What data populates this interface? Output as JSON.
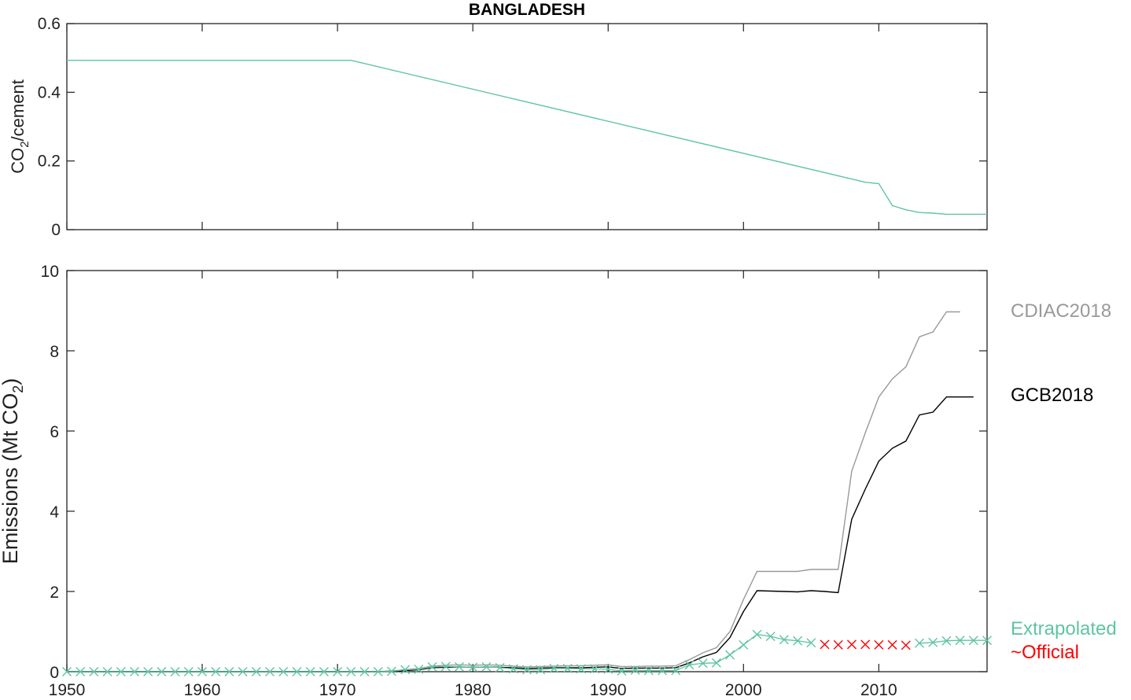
{
  "chart_data": [
    {
      "type": "line",
      "title": "BANGLADESH",
      "ylabel": "CO",
      "ylabel_sub": "2",
      "ylabel_suffix": "/cement",
      "xlim": [
        1950,
        2018
      ],
      "ylim": [
        0,
        0.6
      ],
      "yticks": [
        "0",
        "0.2",
        "0.4",
        "0.6"
      ],
      "grid": false,
      "color": "#5fc4a4",
      "x": [
        1950,
        1971,
        2009,
        2010,
        2011,
        2012,
        2013,
        2014,
        2015,
        2016,
        2017,
        2018
      ],
      "values": [
        0.493,
        0.493,
        0.138,
        0.134,
        0.07,
        0.058,
        0.05,
        0.048,
        0.045,
        0.045,
        0.045,
        0.045
      ]
    },
    {
      "type": "line",
      "ylabel": "Emissions (Mt CO",
      "ylabel_sub": "2",
      "ylabel_suffix": ")",
      "xlim": [
        1950,
        2018
      ],
      "ylim": [
        0,
        10
      ],
      "xticks": [
        "1950",
        "1960",
        "1970",
        "1980",
        "1990",
        "2000",
        "2010"
      ],
      "yticks": [
        "0",
        "2",
        "4",
        "6",
        "8",
        "10"
      ],
      "grid": false,
      "series": [
        {
          "name": "CDIAC2018",
          "color": "#999999",
          "x": [
            1950,
            1972,
            1973,
            1974,
            1975,
            1976,
            1977,
            1978,
            1979,
            1980,
            1981,
            1982,
            1983,
            1984,
            1985,
            1986,
            1987,
            1988,
            1989,
            1990,
            1991,
            1992,
            1993,
            1994,
            1995,
            1996,
            1997,
            1998,
            1999,
            2000,
            2001,
            2002,
            2003,
            2004,
            2005,
            2006,
            2007,
            2008,
            2009,
            2010,
            2011,
            2012,
            2013,
            2014,
            2015,
            2016
          ],
          "values": [
            0,
            0,
            0,
            0.02,
            0.05,
            0.08,
            0.14,
            0.16,
            0.17,
            0.16,
            0.17,
            0.16,
            0.14,
            0.12,
            0.13,
            0.14,
            0.15,
            0.15,
            0.16,
            0.17,
            0.13,
            0.13,
            0.14,
            0.14,
            0.15,
            0.3,
            0.47,
            0.6,
            1.0,
            1.8,
            2.5,
            2.5,
            2.5,
            2.5,
            2.55,
            2.55,
            2.55,
            5.0,
            5.95,
            6.85,
            7.3,
            7.6,
            8.35,
            8.47,
            8.97,
            8.97
          ]
        },
        {
          "name": "GCB2018",
          "color": "#000000",
          "x": [
            1950,
            1972,
            1973,
            1974,
            1975,
            1976,
            1977,
            1978,
            1979,
            1980,
            1981,
            1982,
            1983,
            1984,
            1985,
            1986,
            1987,
            1988,
            1989,
            1990,
            1991,
            1992,
            1993,
            1994,
            1995,
            1996,
            1997,
            1998,
            1999,
            2000,
            2001,
            2002,
            2003,
            2004,
            2005,
            2006,
            2007,
            2008,
            2009,
            2010,
            2011,
            2012,
            2013,
            2014,
            2015,
            2016,
            2017
          ],
          "values": [
            0,
            0,
            0,
            0.01,
            0.03,
            0.05,
            0.1,
            0.11,
            0.12,
            0.11,
            0.12,
            0.11,
            0.1,
            0.08,
            0.09,
            0.1,
            0.1,
            0.1,
            0.11,
            0.12,
            0.08,
            0.09,
            0.09,
            0.09,
            0.1,
            0.22,
            0.37,
            0.48,
            0.85,
            1.5,
            2.02,
            2.01,
            2.0,
            1.99,
            2.02,
            2.0,
            1.97,
            3.8,
            4.55,
            5.25,
            5.57,
            5.75,
            6.4,
            6.47,
            6.85,
            6.85,
            6.85
          ]
        },
        {
          "name": "Extrapolated",
          "color": "#5fc4a4",
          "marker": "x",
          "x": [
            1950,
            1951,
            1952,
            1953,
            1954,
            1955,
            1956,
            1957,
            1958,
            1959,
            1960,
            1961,
            1962,
            1963,
            1964,
            1965,
            1966,
            1967,
            1968,
            1969,
            1970,
            1971,
            1972,
            1973,
            1974,
            1975,
            1976,
            1977,
            1978,
            1979,
            1980,
            1981,
            1982,
            1983,
            1984,
            1985,
            1986,
            1987,
            1988,
            1989,
            1990,
            1991,
            1992,
            1993,
            1994,
            1995,
            1996,
            1997,
            1998,
            1999,
            2000,
            2001,
            2002,
            2003,
            2004,
            2005,
            2013,
            2014,
            2015,
            2016,
            2017,
            2018
          ],
          "values": [
            0,
            0,
            0,
            0,
            0,
            0,
            0,
            0,
            0,
            0,
            0,
            0,
            0,
            0,
            0,
            0,
            0,
            0,
            0,
            0,
            0,
            0,
            0,
            0,
            0.01,
            0.05,
            0.06,
            0.12,
            0.13,
            0.12,
            0.11,
            0.12,
            0.1,
            0.07,
            0.05,
            0.05,
            0.08,
            0.08,
            0.07,
            0.07,
            0.06,
            0.02,
            0.04,
            0.03,
            0.03,
            0.03,
            0.17,
            0.21,
            0.22,
            0.42,
            0.67,
            0.93,
            0.88,
            0.8,
            0.77,
            0.72,
            0.71,
            0.73,
            0.77,
            0.78,
            0.78,
            0.78
          ]
        },
        {
          "name": "~Official",
          "color": "#ff0000",
          "marker": "x",
          "x": [
            2006,
            2007,
            2008,
            2009,
            2010,
            2011,
            2012
          ],
          "values": [
            0.68,
            0.67,
            0.68,
            0.68,
            0.67,
            0.67,
            0.66
          ]
        }
      ]
    }
  ]
}
